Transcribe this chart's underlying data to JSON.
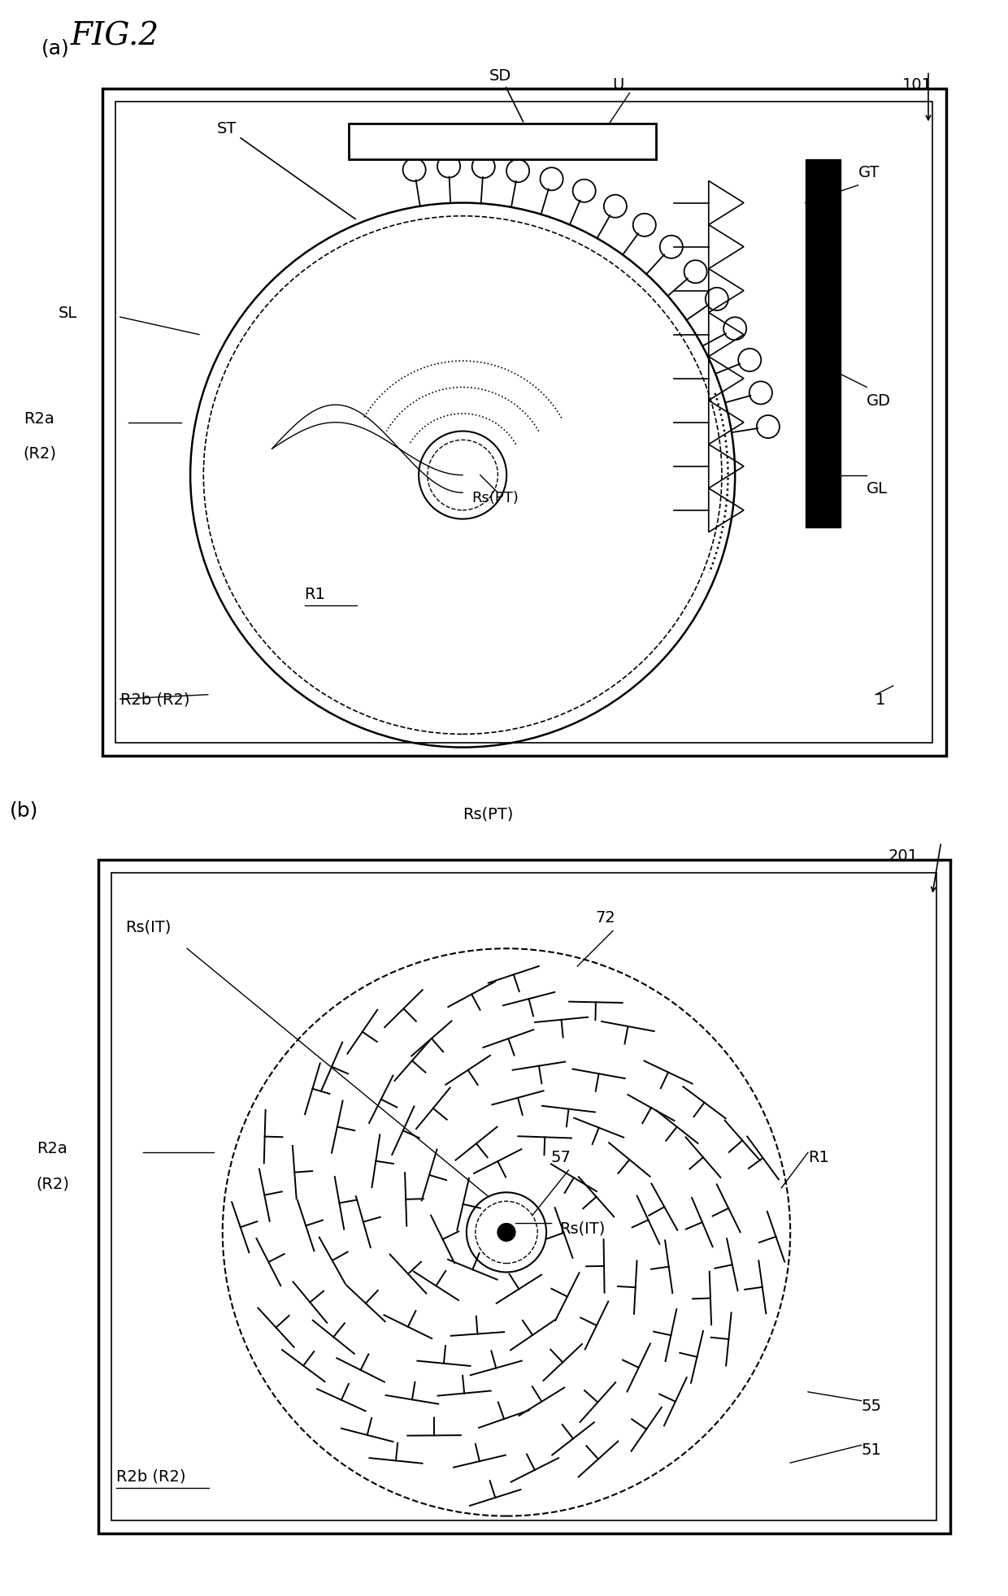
{
  "fig_title": "FIG.2",
  "bg_color": "#ffffff",
  "line_color": "#000000",
  "panel_a_label": "(a)",
  "panel_b_label": "(b)",
  "panel_a_ref": "101",
  "panel_b_ref": "201"
}
